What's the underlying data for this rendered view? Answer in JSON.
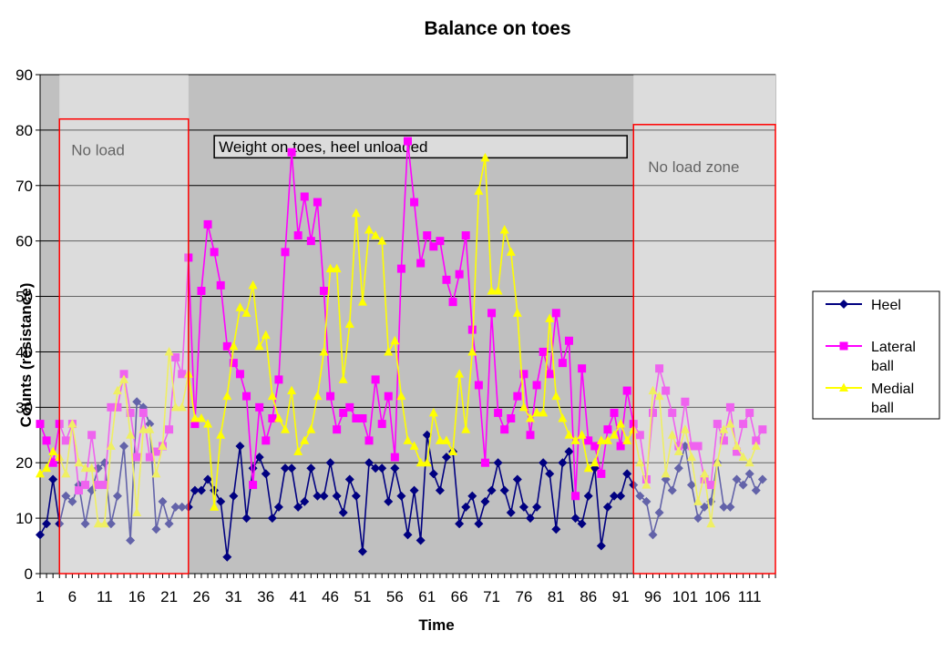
{
  "chart_data": {
    "type": "line",
    "title": "Balance on toes",
    "xlabel": "Time",
    "ylabel": "Counts (resistance)",
    "ylim": [
      0,
      90
    ],
    "yticks": [
      0,
      10,
      20,
      30,
      40,
      50,
      60,
      70,
      80,
      90
    ],
    "xlim": [
      1,
      115
    ],
    "xtick_labels": [
      "1",
      "6",
      "11",
      "16",
      "21",
      "26",
      "31",
      "36",
      "41",
      "46",
      "51",
      "56",
      "61",
      "66",
      "71",
      "76",
      "81",
      "86",
      "91",
      "96",
      "101",
      "106",
      "111"
    ],
    "grid": true,
    "legend_position": "right",
    "annotations": [
      {
        "text": "No load",
        "x_range": [
          4,
          24
        ],
        "y_range": [
          0,
          82
        ]
      },
      {
        "text": "Weight on toes, heel unloaded",
        "x_range": [
          28,
          92
        ],
        "y_range": [
          75,
          79
        ]
      },
      {
        "text": "No load zone",
        "x_range": [
          93,
          115
        ],
        "y_range": [
          0,
          81
        ]
      }
    ],
    "zones": [
      {
        "x_range": [
          4,
          24
        ]
      },
      {
        "x_range": [
          93,
          115
        ]
      }
    ],
    "series": [
      {
        "name": "Heel",
        "color": "#000080",
        "marker": "diamond",
        "values": [
          7,
          9,
          17,
          9,
          14,
          13,
          16,
          9,
          15,
          19,
          20,
          9,
          14,
          23,
          6,
          31,
          30,
          27,
          8,
          13,
          9,
          12,
          12,
          12,
          15,
          15,
          17,
          15,
          13,
          3,
          14,
          23,
          10,
          19,
          21,
          18,
          10,
          12,
          19,
          19,
          12,
          13,
          19,
          14,
          14,
          20,
          14,
          11,
          17,
          14,
          4,
          20,
          19,
          19,
          13,
          19,
          14,
          7,
          15,
          6,
          25,
          18,
          15,
          21,
          22,
          9,
          12,
          14,
          9,
          13,
          15,
          20,
          15,
          11,
          17,
          12,
          10,
          12,
          20,
          18,
          8,
          20,
          22,
          10,
          9,
          14,
          19,
          5,
          12,
          14,
          14,
          18,
          16,
          14,
          13,
          7,
          11,
          17,
          15,
          19,
          23,
          16,
          10,
          12,
          13,
          20,
          12,
          12,
          17,
          16,
          18,
          15,
          17
        ]
      },
      {
        "name": "Lateral ball",
        "color": "#FF00FF",
        "marker": "square",
        "values": [
          27,
          24,
          20,
          27,
          24,
          27,
          15,
          16,
          25,
          16,
          16,
          30,
          30,
          36,
          29,
          21,
          29,
          21,
          22,
          23,
          26,
          39,
          36,
          57,
          27,
          51,
          63,
          58,
          52,
          41,
          38,
          36,
          32,
          16,
          30,
          24,
          28,
          35,
          58,
          76,
          61,
          68,
          60,
          67,
          51,
          32,
          26,
          29,
          30,
          28,
          28,
          24,
          35,
          27,
          32,
          21,
          55,
          78,
          67,
          56,
          61,
          59,
          60,
          53,
          49,
          54,
          61,
          44,
          34,
          20,
          47,
          29,
          26,
          28,
          32,
          36,
          25,
          34,
          40,
          36,
          47,
          38,
          42,
          14,
          37,
          24,
          23,
          18,
          26,
          29,
          23,
          33,
          27,
          25,
          17,
          29,
          37,
          33,
          29,
          23,
          31,
          23,
          23,
          17,
          16,
          27,
          24,
          30,
          22,
          27,
          29,
          24,
          26
        ]
      },
      {
        "name": "Medial ball",
        "color": "#FFFF00",
        "marker": "triangle",
        "values": [
          18,
          19,
          22,
          21,
          18,
          27,
          20,
          19,
          19,
          9,
          9,
          23,
          33,
          35,
          25,
          11,
          26,
          26,
          18,
          23,
          40,
          30,
          30,
          36,
          28,
          28,
          27,
          12,
          25,
          32,
          41,
          48,
          47,
          52,
          41,
          43,
          32,
          28,
          26,
          33,
          22,
          24,
          26,
          32,
          40,
          55,
          55,
          35,
          45,
          65,
          49,
          62,
          61,
          60,
          40,
          42,
          32,
          24,
          23,
          20,
          20,
          29,
          24,
          24,
          22,
          36,
          26,
          40,
          69,
          75,
          51,
          51,
          62,
          58,
          47,
          30,
          28,
          29,
          29,
          46,
          32,
          28,
          25,
          24,
          25,
          19,
          20,
          24,
          24,
          25,
          27,
          24,
          26,
          20,
          16,
          33,
          32,
          18,
          25,
          22,
          26,
          21,
          13,
          18,
          9,
          20,
          26,
          27,
          23,
          21,
          20,
          23
        ]
      }
    ]
  }
}
